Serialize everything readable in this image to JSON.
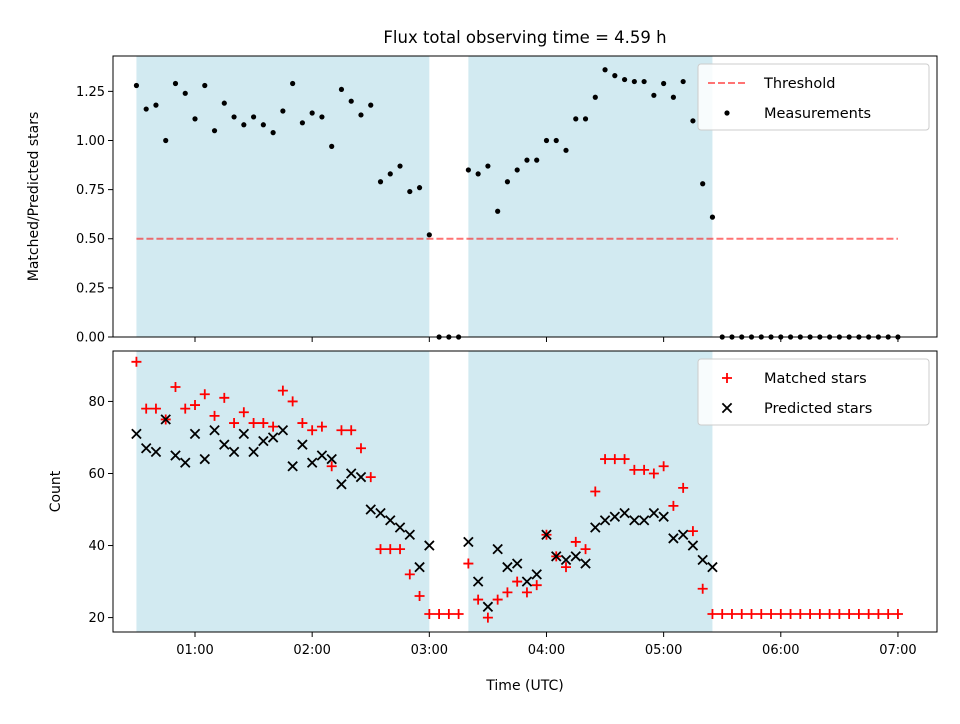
{
  "title": "Flux total observing time = 4.59 h",
  "colors": {
    "shade": "#add8e6",
    "threshold": "#ff0000",
    "measurements": "#000000",
    "matched": "#ff0000",
    "predicted": "#000000"
  },
  "chart_data": [
    {
      "type": "scatter",
      "ylabel": "Matched/Predicted stars",
      "ylim": [
        0,
        1.43
      ],
      "yticks": [
        0.0,
        0.25,
        0.5,
        0.75,
        1.0,
        1.25
      ],
      "ytick_labels": [
        "0.00",
        "0.25",
        "0.50",
        "0.75",
        "1.00",
        "1.25"
      ],
      "xlim": [
        "00:18",
        "07:20"
      ],
      "xticks": [
        "01:00",
        "02:00",
        "03:00",
        "04:00",
        "05:00",
        "06:00",
        "07:00"
      ],
      "shaded_intervals": [
        [
          "00:30",
          "03:00"
        ],
        [
          "03:20",
          "05:25"
        ]
      ],
      "legend": {
        "position": "top-right",
        "entries": [
          "Threshold",
          "Measurements"
        ]
      },
      "threshold": {
        "name": "Threshold",
        "y": 0.5,
        "x_range": [
          "00:30",
          "07:00"
        ]
      },
      "series": [
        {
          "name": "Measurements",
          "x": [
            "00:30",
            "00:35",
            "00:40",
            "00:45",
            "00:50",
            "00:55",
            "01:00",
            "01:05",
            "01:10",
            "01:15",
            "01:20",
            "01:25",
            "01:30",
            "01:35",
            "01:40",
            "01:45",
            "01:50",
            "01:55",
            "02:00",
            "02:05",
            "02:10",
            "02:15",
            "02:20",
            "02:25",
            "02:30",
            "02:35",
            "02:40",
            "02:45",
            "02:50",
            "02:55",
            "03:00",
            "03:05",
            "03:10",
            "03:15",
            "03:20",
            "03:25",
            "03:30",
            "03:35",
            "03:40",
            "03:45",
            "03:50",
            "03:55",
            "04:00",
            "04:05",
            "04:10",
            "04:15",
            "04:20",
            "04:25",
            "04:30",
            "04:35",
            "04:40",
            "04:45",
            "04:50",
            "04:55",
            "05:00",
            "05:05",
            "05:10",
            "05:15",
            "05:20",
            "05:25",
            "05:30",
            "05:35",
            "05:40",
            "05:45",
            "05:50",
            "05:55",
            "06:00",
            "06:05",
            "06:10",
            "06:15",
            "06:20",
            "06:25",
            "06:30",
            "06:35",
            "06:40",
            "06:45",
            "06:50",
            "06:55",
            "07:00"
          ],
          "y": [
            1.28,
            1.16,
            1.18,
            1.0,
            1.29,
            1.24,
            1.11,
            1.28,
            1.05,
            1.19,
            1.12,
            1.08,
            1.12,
            1.08,
            1.04,
            1.15,
            1.29,
            1.09,
            1.14,
            1.12,
            0.97,
            1.26,
            1.2,
            1.13,
            1.18,
            0.79,
            0.83,
            0.87,
            0.74,
            0.76,
            0.52,
            0.0,
            0.0,
            0.0,
            0.85,
            0.83,
            0.87,
            0.64,
            0.79,
            0.85,
            0.9,
            0.9,
            1.0,
            1.0,
            0.95,
            1.11,
            1.11,
            1.22,
            1.36,
            1.33,
            1.31,
            1.3,
            1.3,
            1.23,
            1.29,
            1.22,
            1.3,
            1.1,
            0.78,
            0.61,
            0.0,
            0.0,
            0.0,
            0.0,
            0.0,
            0.0,
            0.0,
            0.0,
            0.0,
            0.0,
            0.0,
            0.0,
            0.0,
            0.0,
            0.0,
            0.0,
            0.0,
            0.0,
            0.0
          ]
        }
      ]
    },
    {
      "type": "scatter",
      "ylabel": "Count",
      "xlabel": "Time (UTC)",
      "ylim": [
        16,
        94
      ],
      "yticks": [
        20,
        40,
        60,
        80
      ],
      "ytick_labels": [
        "20",
        "40",
        "60",
        "80"
      ],
      "xlim": [
        "00:18",
        "07:20"
      ],
      "xticks": [
        "01:00",
        "02:00",
        "03:00",
        "04:00",
        "05:00",
        "06:00",
        "07:00"
      ],
      "xtick_labels": [
        "01:00",
        "02:00",
        "03:00",
        "04:00",
        "05:00",
        "06:00",
        "07:00"
      ],
      "shaded_intervals": [
        [
          "00:30",
          "03:00"
        ],
        [
          "03:20",
          "05:25"
        ]
      ],
      "legend": {
        "position": "top-right",
        "entries": [
          "Matched stars",
          "Predicted stars"
        ]
      },
      "series": [
        {
          "name": "Matched stars",
          "marker": "plus",
          "x": [
            "00:30",
            "00:35",
            "00:40",
            "00:45",
            "00:50",
            "00:55",
            "01:00",
            "01:05",
            "01:10",
            "01:15",
            "01:20",
            "01:25",
            "01:30",
            "01:35",
            "01:40",
            "01:45",
            "01:50",
            "01:55",
            "02:00",
            "02:05",
            "02:10",
            "02:15",
            "02:20",
            "02:25",
            "02:30",
            "02:35",
            "02:40",
            "02:45",
            "02:50",
            "02:55",
            "03:00",
            "03:05",
            "03:10",
            "03:15",
            "03:20",
            "03:25",
            "03:30",
            "03:35",
            "03:40",
            "03:45",
            "03:50",
            "03:55",
            "04:00",
            "04:05",
            "04:10",
            "04:15",
            "04:20",
            "04:25",
            "04:30",
            "04:35",
            "04:40",
            "04:45",
            "04:50",
            "04:55",
            "05:00",
            "05:05",
            "05:10",
            "05:15",
            "05:20",
            "05:25",
            "05:30",
            "05:35",
            "05:40",
            "05:45",
            "05:50",
            "05:55",
            "06:00",
            "06:05",
            "06:10",
            "06:15",
            "06:20",
            "06:25",
            "06:30",
            "06:35",
            "06:40",
            "06:45",
            "06:50",
            "06:55",
            "07:00"
          ],
          "y": [
            91,
            78,
            78,
            75,
            84,
            78,
            79,
            82,
            76,
            81,
            74,
            77,
            74,
            74,
            73,
            83,
            80,
            74,
            72,
            73,
            62,
            72,
            72,
            67,
            59,
            39,
            39,
            39,
            32,
            26,
            21,
            21,
            21,
            21,
            35,
            25,
            20,
            25,
            27,
            30,
            27,
            29,
            43,
            37,
            34,
            41,
            39,
            55,
            64,
            64,
            64,
            61,
            61,
            60,
            62,
            51,
            56,
            44,
            28,
            21,
            21,
            21,
            21,
            21,
            21,
            21,
            21,
            21,
            21,
            21,
            21,
            21,
            21,
            21,
            21,
            21,
            21,
            21,
            21
          ]
        },
        {
          "name": "Predicted stars",
          "marker": "x",
          "x": [
            "00:30",
            "00:35",
            "00:40",
            "00:45",
            "00:50",
            "00:55",
            "01:00",
            "01:05",
            "01:10",
            "01:15",
            "01:20",
            "01:25",
            "01:30",
            "01:35",
            "01:40",
            "01:45",
            "01:50",
            "01:55",
            "02:00",
            "02:05",
            "02:10",
            "02:15",
            "02:20",
            "02:25",
            "02:30",
            "02:35",
            "02:40",
            "02:45",
            "02:50",
            "02:55",
            "03:00",
            "03:20",
            "03:25",
            "03:30",
            "03:35",
            "03:40",
            "03:45",
            "03:50",
            "03:55",
            "04:00",
            "04:05",
            "04:10",
            "04:15",
            "04:20",
            "04:25",
            "04:30",
            "04:35",
            "04:40",
            "04:45",
            "04:50",
            "04:55",
            "05:00",
            "05:05",
            "05:10",
            "05:15",
            "05:20",
            "05:25"
          ],
          "y": [
            71,
            67,
            66,
            75,
            65,
            63,
            71,
            64,
            72,
            68,
            66,
            71,
            66,
            69,
            70,
            72,
            62,
            68,
            63,
            65,
            64,
            57,
            60,
            59,
            50,
            49,
            47,
            45,
            43,
            34,
            40,
            41,
            30,
            23,
            39,
            34,
            35,
            30,
            32,
            43,
            37,
            36,
            37,
            35,
            45,
            47,
            48,
            49,
            47,
            47,
            49,
            48,
            42,
            43,
            40,
            36,
            34
          ]
        }
      ]
    }
  ]
}
